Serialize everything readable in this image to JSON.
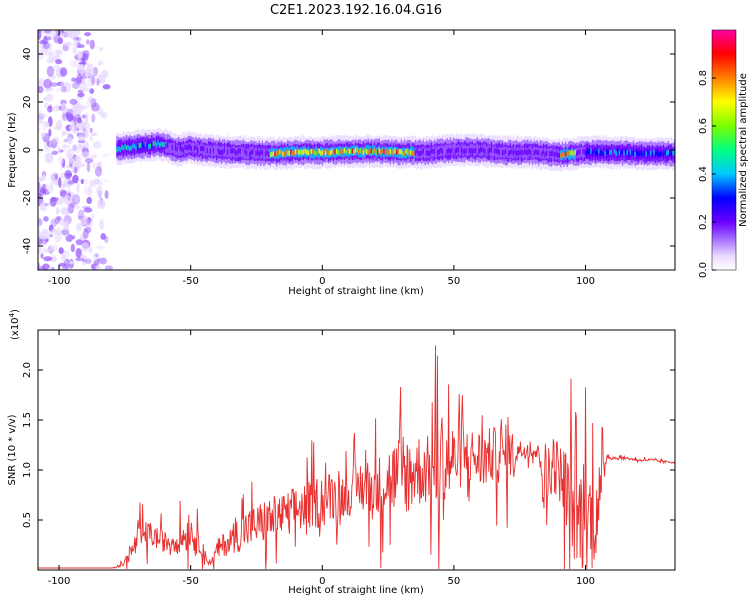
{
  "figure_title": "C2E1.2023.192.16.04.G16",
  "chart_data": [
    {
      "type": "heatmap",
      "title": "",
      "xlabel": "Height of straight line (km)",
      "ylabel": "Frequency (Hz)",
      "xlim": [
        -108,
        134
      ],
      "ylim": [
        -50,
        50
      ],
      "x_ticks": [
        -100,
        -50,
        0,
        50,
        100
      ],
      "y_ticks": [
        -40,
        -20,
        0,
        20,
        40
      ],
      "grid": false,
      "colorbar": {
        "label": "Normalized spectral amplitude",
        "ticks": [
          0.0,
          0.2,
          0.4,
          0.6,
          0.8
        ],
        "range": [
          0,
          1
        ],
        "colormap": [
          "#ffffff",
          "#e8d8ff",
          "#9a5cff",
          "#6a00ff",
          "#0000ff",
          "#00c8ff",
          "#00ff80",
          "#7cff00",
          "#ffff00",
          "#ff8000",
          "#ff0000",
          "#ff00a0"
        ]
      },
      "noise_region_x": [
        -108,
        -80
      ],
      "band_center_hz": [
        [
          -78,
          0.5
        ],
        [
          -70,
          1.5
        ],
        [
          -62,
          2.5
        ],
        [
          -55,
          0
        ],
        [
          -50,
          1
        ],
        [
          -45,
          0
        ],
        [
          -40,
          -0.5
        ],
        [
          -30,
          -1
        ],
        [
          -20,
          -1.5
        ],
        [
          -10,
          -1
        ],
        [
          0,
          -1
        ],
        [
          10,
          -0.5
        ],
        [
          20,
          -0.5
        ],
        [
          30,
          -1
        ],
        [
          40,
          -1
        ],
        [
          50,
          0
        ],
        [
          60,
          0
        ],
        [
          70,
          -1
        ],
        [
          80,
          -1
        ],
        [
          90,
          -2
        ],
        [
          100,
          -1
        ],
        [
          110,
          -1
        ],
        [
          120,
          -1.5
        ],
        [
          134,
          -1.5
        ]
      ],
      "band_halfwidth_hz": 3,
      "peak_amplitude_regions": [
        {
          "x": [
            -20,
            35
          ],
          "level": 0.9
        },
        {
          "x": [
            90,
            96
          ],
          "level": 0.9
        },
        {
          "x": [
            -78,
            -60
          ],
          "level": 0.55
        },
        {
          "x": [
            100,
            134
          ],
          "level": 0.45
        }
      ]
    },
    {
      "type": "line",
      "title": "",
      "xlabel": "Height of straight line (km)",
      "ylabel": "SNR (10 * v/v)",
      "y_multiplier_label": "(x10",
      "y_multiplier_exponent": "4",
      "y_multiplier_close": ")",
      "xlim": [
        -108,
        134
      ],
      "ylim": [
        0,
        2.4
      ],
      "x_ticks": [
        -100,
        -50,
        0,
        50,
        100
      ],
      "y_ticks": [
        0.5,
        1.0,
        1.5,
        2.0
      ],
      "grid": false,
      "color": "#e83030",
      "series": [
        {
          "name": "",
          "x": [
            -108,
            -90,
            -80,
            -76,
            -72,
            -70,
            -68,
            -65,
            -60,
            -55,
            -52,
            -50,
            -48,
            -46,
            -44,
            -42,
            -40,
            -35,
            -30,
            -25,
            -20,
            -15,
            -10,
            -5,
            0,
            5,
            10,
            15,
            20,
            25,
            30,
            35,
            40,
            45,
            50,
            55,
            60,
            65,
            70,
            75,
            80,
            83,
            85,
            87,
            90,
            93,
            96,
            98,
            100,
            102,
            104,
            106,
            108,
            110,
            115,
            120,
            125,
            130,
            134
          ],
          "y": [
            0.02,
            0.02,
            0.02,
            0.05,
            0.2,
            0.3,
            0.35,
            0.35,
            0.28,
            0.3,
            0.35,
            0.4,
            0.3,
            0.25,
            0.1,
            0.08,
            0.2,
            0.3,
            0.4,
            0.45,
            0.5,
            0.55,
            0.6,
            0.65,
            0.7,
            0.75,
            0.75,
            0.85,
            0.8,
            0.9,
            0.95,
            1.0,
            1.0,
            1.05,
            1.1,
            1.15,
            1.1,
            1.15,
            1.15,
            1.2,
            1.2,
            1.15,
            0.7,
            1.1,
            1.0,
            0.7,
            0.6,
            0.5,
            0.6,
            0.5,
            0.6,
            0.8,
            1.15,
            1.12,
            1.12,
            1.1,
            1.1,
            1.08,
            1.08
          ],
          "spread": [
            0,
            0,
            0,
            0.03,
            0.15,
            0.2,
            0.2,
            0.18,
            0.15,
            0.2,
            0.25,
            0.25,
            0.2,
            0.15,
            0.06,
            0.05,
            0.15,
            0.2,
            0.3,
            0.3,
            0.35,
            0.3,
            0.35,
            0.35,
            0.4,
            0.35,
            0.3,
            0.4,
            0.45,
            0.5,
            0.6,
            0.55,
            0.5,
            0.9,
            0.5,
            0.4,
            0.45,
            0.4,
            0.45,
            0.15,
            0.1,
            0.15,
            0.9,
            0.5,
            0.4,
            0.8,
            0.8,
            0.8,
            0.85,
            0.8,
            0.7,
            0.4,
            0.06,
            0.03,
            0.02,
            0.02,
            0.02,
            0.02,
            0.02
          ]
        }
      ]
    }
  ]
}
